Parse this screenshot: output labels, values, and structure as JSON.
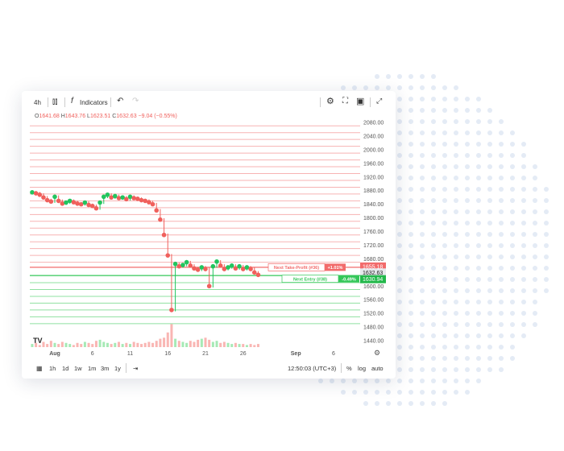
{
  "toolbar": {
    "interval": "4h",
    "indicators": "Indicators",
    "icons": [
      "candles-icon",
      "fx-icon",
      "undo-icon",
      "redo-icon",
      "gear-icon",
      "fullscreen-icon",
      "camera-icon",
      "expand-icon"
    ]
  },
  "ohlc": {
    "o_label": "O",
    "o": "1641.68",
    "h_label": "H",
    "h": "1643.76",
    "l_label": "L",
    "l": "1623.51",
    "c_label": "C",
    "c": "1632.63",
    "change": "−9.04 (−0.55%)"
  },
  "bottom": {
    "ranges": [
      "1h",
      "1d",
      "1w",
      "1m",
      "3m",
      "1y"
    ],
    "time": "12:50:03 (UTC+3)",
    "percent": "%",
    "log": "log",
    "auto": "auto"
  },
  "colors": {
    "up": "#22c55e",
    "down": "#f0605c",
    "take_profit_line": "#f26b6b",
    "entry_line": "#34c759"
  },
  "chart_data": {
    "type": "scatter",
    "title": "",
    "ylim": [
      1440,
      2080
    ],
    "y_ticks": [
      "2080.00",
      "2040.00",
      "2000.00",
      "1960.00",
      "1920.00",
      "1880.00",
      "1840.00",
      "1800.00",
      "1760.00",
      "1720.00",
      "1680.00",
      "1600.00",
      "1560.00",
      "1520.00",
      "1480.00",
      "1440.00"
    ],
    "x_ticks": [
      {
        "label": "Aug",
        "day": 1
      },
      {
        "label": "6",
        "day": 6
      },
      {
        "label": "11",
        "day": 11
      },
      {
        "label": "16",
        "day": 16
      },
      {
        "label": "21",
        "day": 21
      },
      {
        "label": "26",
        "day": 26
      },
      {
        "label": "Sep",
        "day": 33
      },
      {
        "label": "6",
        "day": 38
      }
    ],
    "x_start_day": -2,
    "step_days": 0.5,
    "closes": [
      1875,
      1872,
      1868,
      1860,
      1852,
      1848,
      1862,
      1850,
      1842,
      1845,
      1850,
      1846,
      1842,
      1840,
      1845,
      1838,
      1835,
      1828,
      1845,
      1862,
      1868,
      1860,
      1864,
      1858,
      1860,
      1855,
      1862,
      1858,
      1856,
      1852,
      1850,
      1846,
      1840,
      1822,
      1795,
      1750,
      1690,
      1530,
      1665,
      1658,
      1662,
      1670,
      1660,
      1652,
      1648,
      1655,
      1650,
      1600,
      1658,
      1672,
      1660,
      1650,
      1655,
      1660,
      1652,
      1658,
      1650,
      1655,
      1650,
      1640,
      1633
    ],
    "volumes": [
      3,
      4,
      2,
      5,
      3,
      6,
      4,
      3,
      5,
      4,
      3,
      2,
      4,
      3,
      5,
      4,
      3,
      6,
      7,
      5,
      4,
      3,
      4,
      5,
      3,
      4,
      3,
      5,
      4,
      3,
      4,
      5,
      4,
      6,
      8,
      9,
      14,
      22,
      8,
      6,
      5,
      4,
      6,
      5,
      7,
      8,
      9,
      7,
      5,
      6,
      4,
      5,
      4,
      3,
      4,
      3,
      3,
      2,
      3,
      2,
      3
    ],
    "current_price": {
      "value": "1632.63"
    },
    "take_profit": {
      "label": "Next Take-Profit (#36)",
      "pct": "+1.01%",
      "price": "1655.18",
      "value": 1655.18
    },
    "entry": {
      "label": "Next Entry (#38)",
      "pct": "-0.49%",
      "price": "1630.94",
      "value": 1630.94
    },
    "grid_red_from": 1660,
    "grid_green_to": 1620,
    "grid_step": 20
  }
}
